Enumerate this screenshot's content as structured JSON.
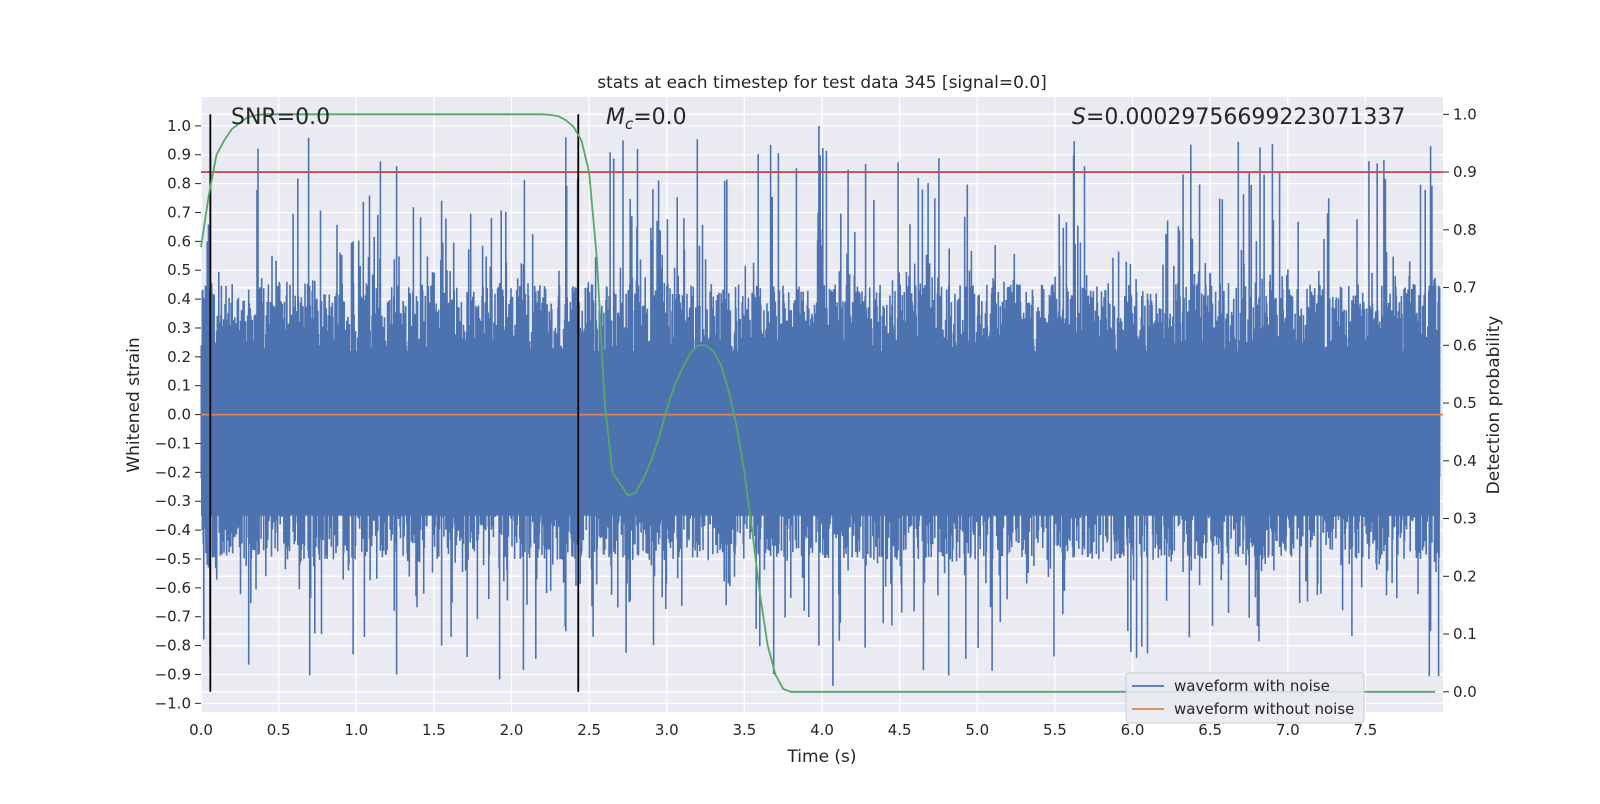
{
  "chart_data": {
    "type": "line",
    "title": "stats at each timestep for test data 345 [signal=0.0]",
    "xlabel": "Time (s)",
    "ylabel_left": "Whitened strain",
    "ylabel_right": "Detection probability",
    "xlim": [
      0.0,
      8.0
    ],
    "ylim_left": [
      -1.03,
      1.1
    ],
    "ylim_right": [
      -0.035,
      1.03
    ],
    "x_ticks": [
      "0.0",
      "0.5",
      "1.0",
      "1.5",
      "2.0",
      "2.5",
      "3.0",
      "3.5",
      "4.0",
      "4.5",
      "5.0",
      "5.5",
      "6.0",
      "6.5",
      "7.0",
      "7.5"
    ],
    "y_ticks_left": [
      "1.0",
      "0.9",
      "0.8",
      "0.7",
      "0.6",
      "0.5",
      "0.4",
      "0.3",
      "0.2",
      "0.1",
      "0.0",
      "−0.1",
      "−0.2",
      "−0.3",
      "−0.4",
      "−0.5",
      "−0.6",
      "−0.7",
      "−0.8",
      "−0.9",
      "−1.0"
    ],
    "y_ticks_right": [
      "1.0",
      "0.9",
      "0.8",
      "0.7",
      "0.6",
      "0.5",
      "0.4",
      "0.3",
      "0.2",
      "0.1",
      "0.0"
    ],
    "grid": true,
    "legend_position": "lower-right",
    "series": [
      {
        "name": "waveform with noise",
        "axis": "left",
        "color": "#4c72b0",
        "envelope_pos": 0.45,
        "envelope_neg": -0.5,
        "peak_max": 1.0,
        "peak_min": -0.94,
        "n_points": 16384
      },
      {
        "name": "waveform without noise",
        "axis": "left",
        "color": "#dd8452",
        "value": 0.0
      },
      {
        "name": "",
        "axis": "right",
        "color": "#55a868",
        "x": [
          0.0,
          0.05,
          0.1,
          0.15,
          0.2,
          0.25,
          0.3,
          0.35,
          0.4,
          0.5,
          0.6,
          0.8,
          1.0,
          1.5,
          2.0,
          2.1,
          2.2,
          2.25,
          2.3,
          2.35,
          2.4,
          2.45,
          2.5,
          2.55,
          2.6,
          2.65,
          2.7,
          2.75,
          2.8,
          2.85,
          2.9,
          2.95,
          3.0,
          3.05,
          3.1,
          3.15,
          3.2,
          3.25,
          3.3,
          3.35,
          3.4,
          3.45,
          3.5,
          3.55,
          3.6,
          3.65,
          3.7,
          3.75,
          3.8,
          3.85,
          3.9,
          3.95,
          4.0,
          4.5,
          5.0,
          6.0,
          7.0,
          7.95
        ],
        "y": [
          0.77,
          0.86,
          0.93,
          0.955,
          0.975,
          0.985,
          0.995,
          0.998,
          1.0,
          1.0,
          1.0,
          1.0,
          1.0,
          1.0,
          1.0,
          1.0,
          1.0,
          0.999,
          0.997,
          0.99,
          0.978,
          0.955,
          0.9,
          0.75,
          0.5,
          0.38,
          0.36,
          0.34,
          0.345,
          0.37,
          0.4,
          0.44,
          0.49,
          0.53,
          0.56,
          0.585,
          0.6,
          0.6,
          0.59,
          0.565,
          0.52,
          0.46,
          0.38,
          0.28,
          0.17,
          0.08,
          0.03,
          0.005,
          0.0,
          0.0,
          0.0,
          0.0,
          0.0,
          0.0,
          0.0,
          0.0,
          0.0,
          0.0
        ]
      }
    ],
    "threshold_line": {
      "axis": "right",
      "value": 0.9,
      "color": "#c44e52"
    },
    "vertical_lines": [
      {
        "x": 0.06,
        "color": "#000000"
      },
      {
        "x": 2.43,
        "color": "#000000"
      }
    ],
    "annotations": [
      {
        "id": "snr",
        "text": "SNR=0.0"
      },
      {
        "id": "mc",
        "text_main": "M",
        "text_sub": "c",
        "text_rest": "=0.0"
      },
      {
        "id": "s",
        "text_main": "S",
        "text_rest": "=0.00029756699223071337"
      }
    ]
  }
}
